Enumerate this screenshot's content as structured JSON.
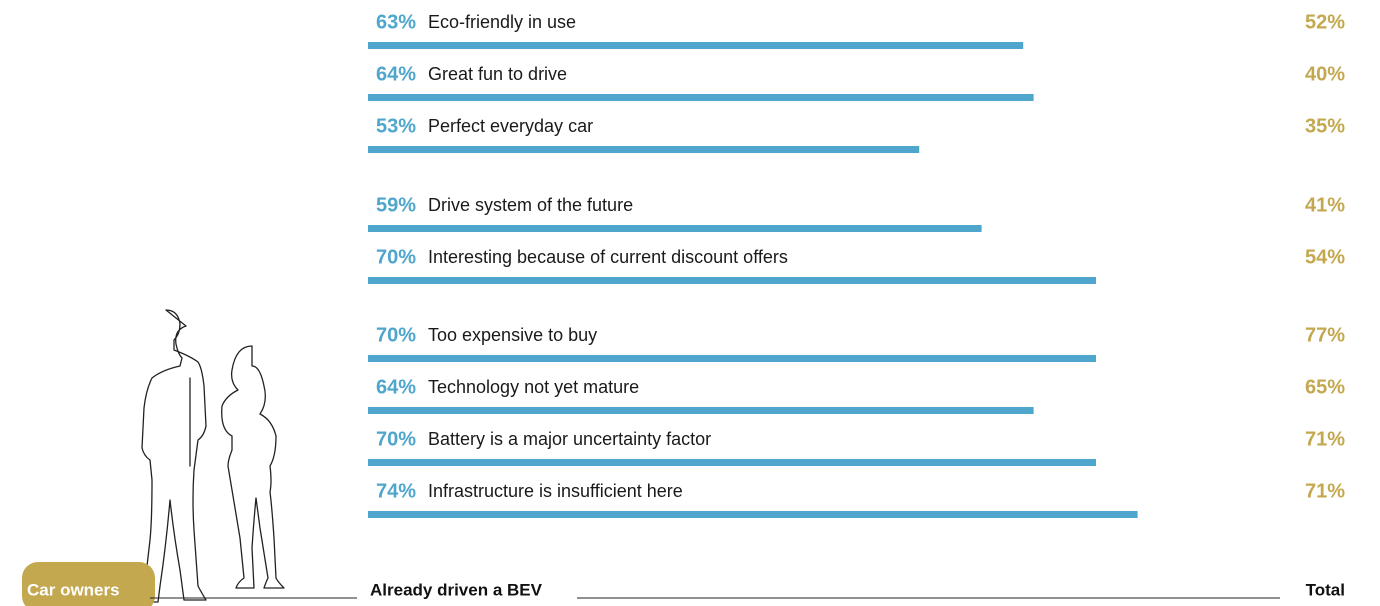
{
  "chart_data": {
    "type": "bar",
    "group_label": "Car owners",
    "categories": [
      "Eco-friendly in use",
      "Great fun to drive",
      "Perfect everyday car",
      "Drive system of the future",
      "Interesting because of current discount offers",
      "Too expensive to buy",
      "Technology not yet mature",
      "Battery is a major uncertainty factor",
      "Infrastructure is insufficient here"
    ],
    "xlim": [
      0,
      100
    ],
    "series": [
      {
        "name": "Already driven a BEV",
        "color": "#4ea6cd",
        "values": [
          63,
          64,
          53,
          59,
          70,
          70,
          64,
          70,
          74
        ],
        "value_labels": [
          "63%",
          "64%",
          "53%",
          "59%",
          "70%",
          "70%",
          "64%",
          "70%",
          "74%"
        ]
      },
      {
        "name": "Total",
        "color": "#c4a84f",
        "values": [
          52,
          40,
          35,
          41,
          54,
          77,
          65,
          71,
          71
        ],
        "value_labels": [
          "52%",
          "40%",
          "35%",
          "41%",
          "54%",
          "77%",
          "65%",
          "71%",
          "71%"
        ]
      }
    ]
  }
}
